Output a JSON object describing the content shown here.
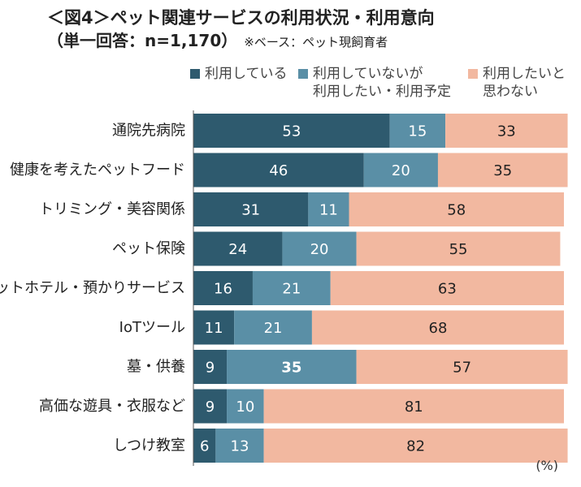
{
  "title": {
    "line1": "＜図4＞ペット関連サービスの利用状況・利用意向",
    "line2": "（単一回答：n=1,170）",
    "base_note": "※ベース：ペット現飼育者"
  },
  "unit_label": "(%)",
  "colors": {
    "series_1": "#2e5a6e",
    "series_2": "#5a8fa6",
    "series_3": "#f2b8a0",
    "text_light": "#ffffff",
    "text_dark": "#222222",
    "axis_line": "#555555"
  },
  "chart_data": {
    "type": "bar",
    "orientation": "horizontal",
    "stacked": true,
    "title": "＜図4＞ペット関連サービスの利用状況・利用意向",
    "subtitle": "（単一回答：n=1,170）※ベース：ペット現飼育者",
    "unit": "(%)",
    "xlim": [
      0,
      100
    ],
    "legend_position": "top",
    "grid": false,
    "categories": [
      "通院先病院",
      "健康を考えたペットフード",
      "トリミング・美容関係",
      "ペット保険",
      "ペットホテル・預かりサービス",
      "IoTツール",
      "墓・供養",
      "高価な遊具・衣服など",
      "しつけ教室"
    ],
    "series": [
      {
        "name_lines": [
          "利用している"
        ],
        "values": [
          53,
          46,
          31,
          24,
          16,
          11,
          9,
          9,
          6
        ]
      },
      {
        "name_lines": [
          "利用していないが",
          "利用したい・利用予定"
        ],
        "values": [
          15,
          20,
          11,
          20,
          21,
          21,
          35,
          10,
          13
        ]
      },
      {
        "name_lines": [
          "利用したいと",
          "思わない"
        ],
        "values": [
          33,
          35,
          58,
          55,
          63,
          68,
          57,
          81,
          82
        ]
      }
    ],
    "bold_values": [
      {
        "category_index": 6,
        "series_index": 1
      }
    ]
  }
}
